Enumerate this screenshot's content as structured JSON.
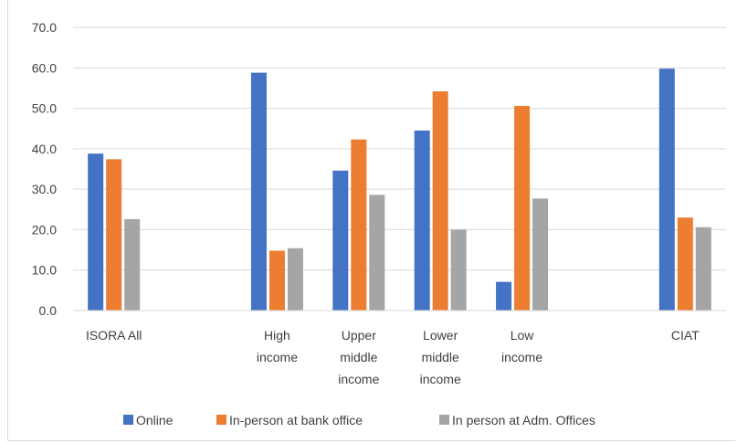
{
  "chart_data": {
    "type": "bar",
    "title": "",
    "xlabel": "",
    "ylabel": "",
    "ylim": [
      0,
      70
    ],
    "yticks": [
      "0.0",
      "10.0",
      "20.0",
      "30.0",
      "40.0",
      "50.0",
      "60.0",
      "70.0"
    ],
    "grid": true,
    "legend_position": "bottom",
    "categories": [
      [
        "ISORA All"
      ],
      [
        "High",
        "income"
      ],
      [
        "Upper",
        "middle",
        "income"
      ],
      [
        "Lower",
        "middle",
        "income"
      ],
      [
        "Low",
        "income"
      ],
      [
        "CIAT"
      ]
    ],
    "category_slots": [
      0,
      2,
      3,
      4,
      5,
      7
    ],
    "series": [
      {
        "name": "Online",
        "color": "#4472C4",
        "values": [
          38.8,
          58.8,
          34.6,
          44.5,
          7.1,
          59.8
        ]
      },
      {
        "name": "In-person at bank office",
        "color": "#ED7D31",
        "values": [
          37.4,
          14.8,
          42.3,
          54.2,
          50.6,
          23.0
        ]
      },
      {
        "name": "In person at Adm. Offices",
        "color": "#A5A5A5",
        "values": [
          22.6,
          15.4,
          28.6,
          20.0,
          27.7,
          20.6
        ]
      }
    ]
  }
}
